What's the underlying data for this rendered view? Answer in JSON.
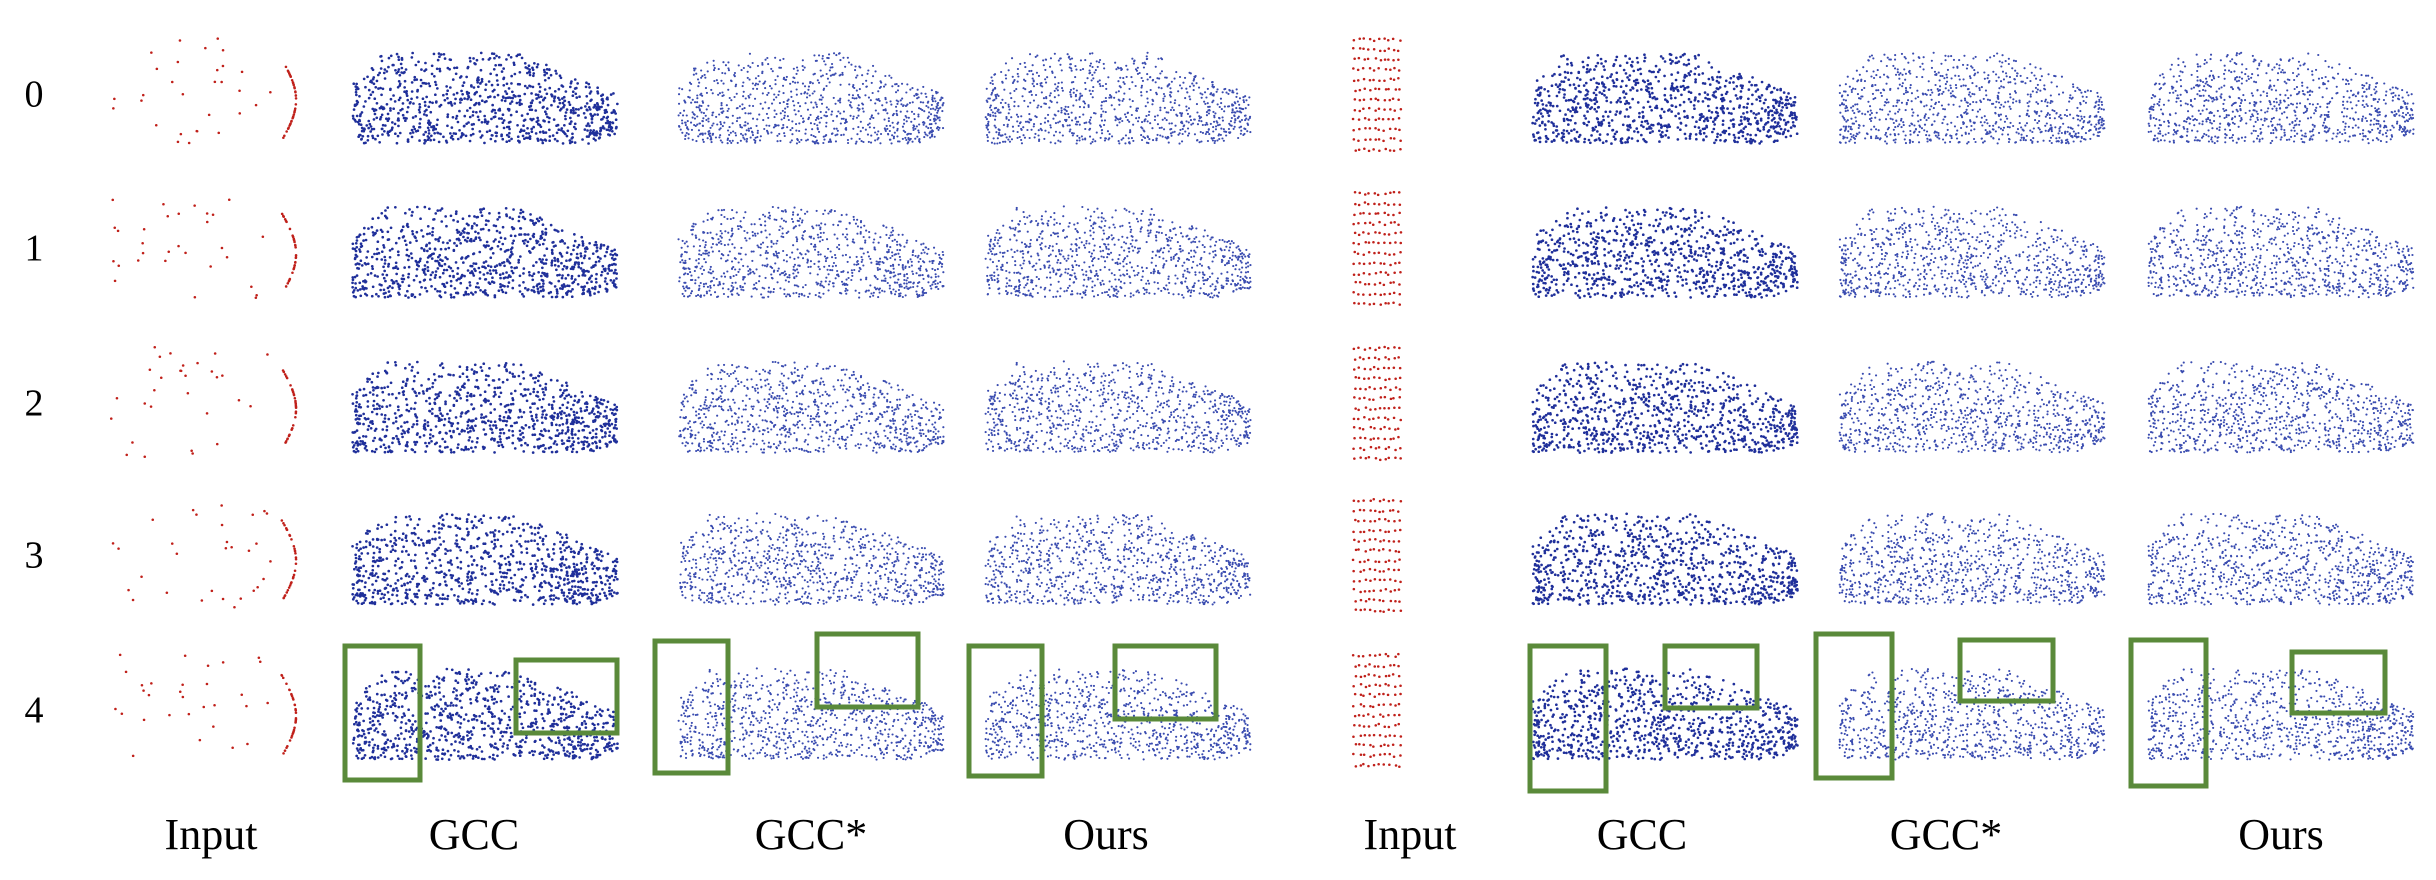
{
  "row_labels": [
    "0",
    "1",
    "2",
    "3",
    "4"
  ],
  "column_labels": [
    "Input",
    "GCC",
    "GCC*",
    "Ours",
    "Input",
    "GCC",
    "GCC*",
    "Ours"
  ]
}
